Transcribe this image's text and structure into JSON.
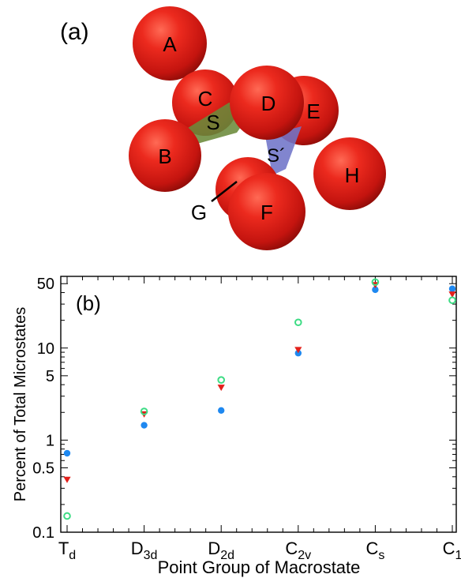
{
  "panel_a": {
    "label": "(a)",
    "spheres": [
      {
        "name": "A"
      },
      {
        "name": "C"
      },
      {
        "name": "D"
      },
      {
        "name": "E"
      },
      {
        "name": "B"
      },
      {
        "name": "H"
      },
      {
        "name": "G"
      },
      {
        "name": "F"
      }
    ],
    "planes": [
      {
        "name": "S",
        "color": "#6b8a3a"
      },
      {
        "name": "S´",
        "color": "#6f74c8"
      }
    ],
    "sphere_color": "#e3201b"
  },
  "panel_b": {
    "label": "(b)"
  },
  "chart_data": {
    "type": "scatter",
    "title": "",
    "xlabel": "Point Group of Macrostate",
    "ylabel": "Percent of Total Microstates",
    "yscale": "log",
    "ylim": [
      0.1,
      60
    ],
    "categories": [
      {
        "base": "T",
        "sub": "d"
      },
      {
        "base": "D",
        "sub": "3d"
      },
      {
        "base": "D",
        "sub": "2d"
      },
      {
        "base": "C",
        "sub": "2v"
      },
      {
        "base": "C",
        "sub": "s"
      },
      {
        "base": "C",
        "sub": "1"
      }
    ],
    "yticks": [
      {
        "value": 0.1,
        "label": "0.1"
      },
      {
        "value": 0.5,
        "label": "0.5"
      },
      {
        "value": 1,
        "label": "1"
      },
      {
        "value": 5,
        "label": "5"
      },
      {
        "value": 10,
        "label": "10"
      },
      {
        "value": 50,
        "label": "50"
      }
    ],
    "series": [
      {
        "marker": "filled-circle",
        "color": "#1e88f0",
        "values": [
          0.72,
          1.45,
          2.1,
          8.8,
          43,
          44
        ]
      },
      {
        "marker": "filled-triangle-down",
        "color": "#e3201b",
        "values": [
          0.37,
          1.9,
          3.7,
          9.5,
          48,
          38
        ]
      },
      {
        "marker": "open-circle",
        "color": "#3ddc84",
        "values": [
          0.15,
          2.05,
          4.5,
          19,
          52,
          33
        ]
      }
    ]
  }
}
